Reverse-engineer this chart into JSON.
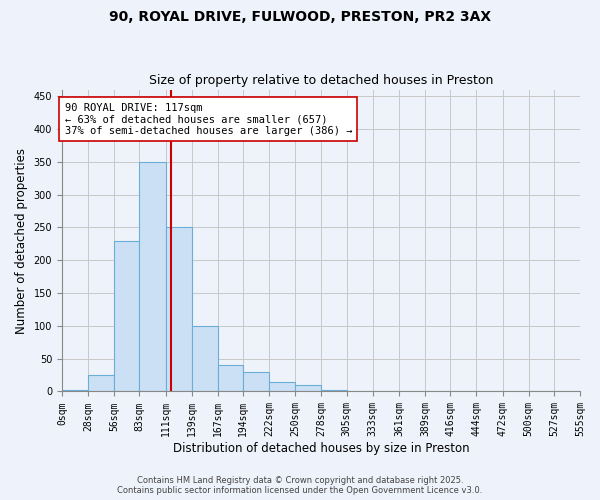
{
  "title1": "90, ROYAL DRIVE, FULWOOD, PRESTON, PR2 3AX",
  "title2": "Size of property relative to detached houses in Preston",
  "xlabel": "Distribution of detached houses by size in Preston",
  "ylabel": "Number of detached properties",
  "bin_edges": [
    0,
    28,
    56,
    83,
    111,
    139,
    167,
    194,
    222,
    250,
    278,
    305,
    333,
    361,
    389,
    416,
    444,
    472,
    500,
    527,
    555
  ],
  "bar_heights": [
    3,
    25,
    230,
    350,
    250,
    100,
    40,
    30,
    15,
    10,
    3,
    1,
    1,
    0,
    0,
    0,
    0,
    0,
    0,
    0
  ],
  "property_size": 117,
  "bar_color": "#cce0f5",
  "bar_edge_color": "#6aaed6",
  "line_color": "#cc0000",
  "annotation_line1": "90 ROYAL DRIVE: 117sqm",
  "annotation_line2": "← 63% of detached houses are smaller (657)",
  "annotation_line3": "37% of semi-detached houses are larger (386) →",
  "annotation_box_color": "#ffffff",
  "annotation_box_edge": "#cc0000",
  "ylim": [
    0,
    460
  ],
  "yticks": [
    0,
    50,
    100,
    150,
    200,
    250,
    300,
    350,
    400,
    450
  ],
  "grid_color": "#c8c8c8",
  "background_color": "#eef2fa",
  "footer_text": "Contains HM Land Registry data © Crown copyright and database right 2025.\nContains public sector information licensed under the Open Government Licence v3.0.",
  "title_fontsize": 10,
  "subtitle_fontsize": 9,
  "axis_label_fontsize": 8.5,
  "tick_fontsize": 7,
  "annotation_fontsize": 7.5,
  "footer_fontsize": 6
}
